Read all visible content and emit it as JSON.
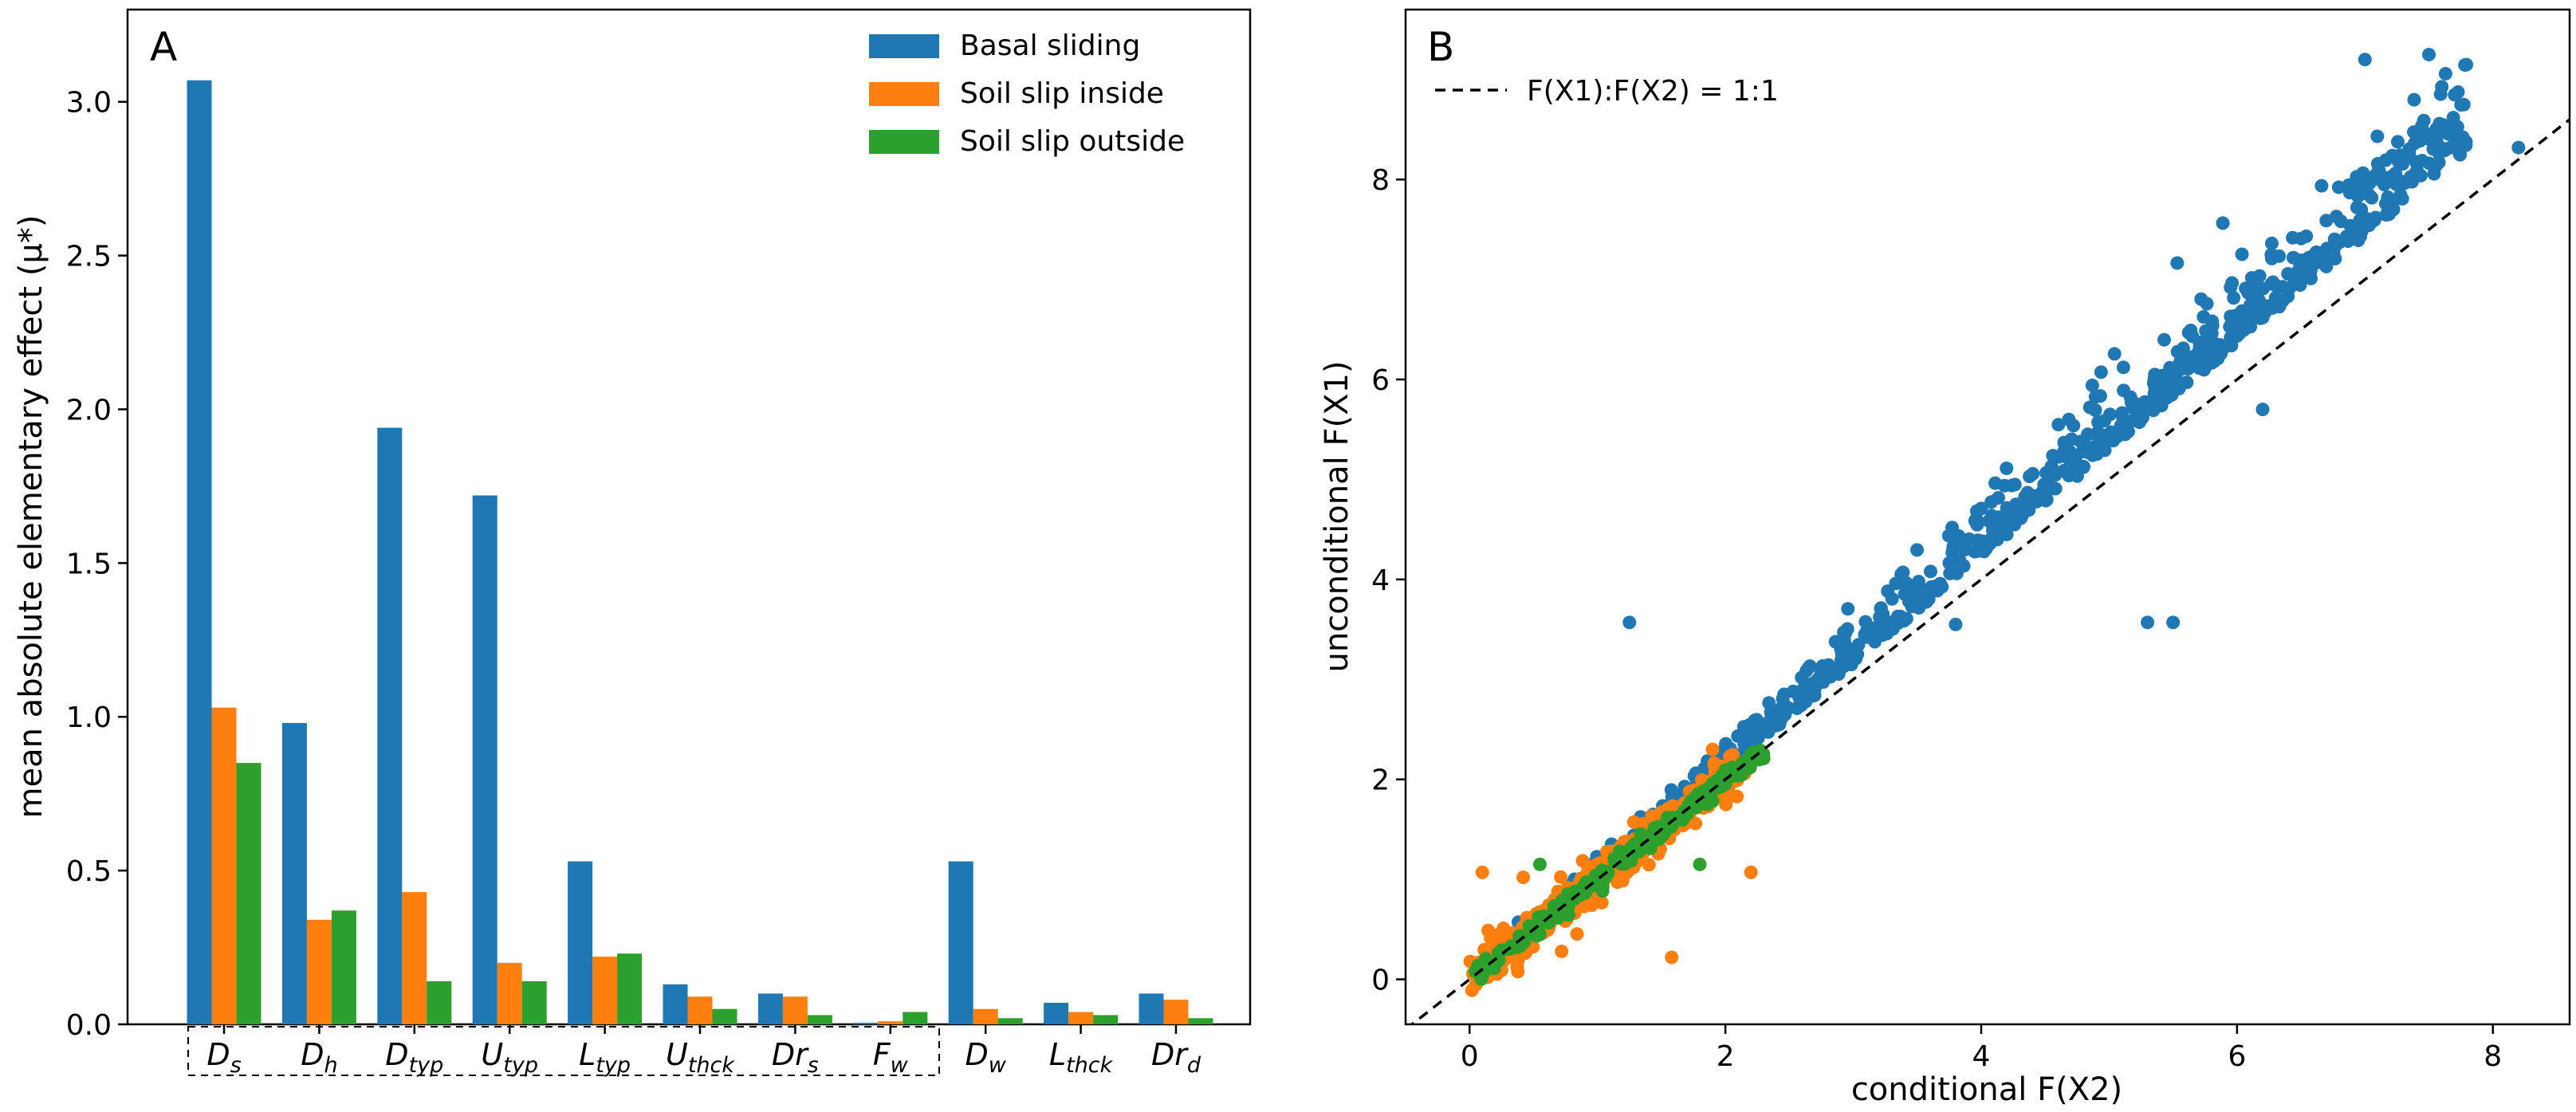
{
  "chart_data": [
    {
      "type": "bar",
      "panel": "A",
      "ylabel": "mean absolute elementary effect (μ*)",
      "ylim": [
        0,
        3.3
      ],
      "yticks": [
        "0.0",
        "0.5",
        "1.0",
        "1.5",
        "2.0",
        "2.5",
        "3.0"
      ],
      "grid": false,
      "legend_position": "top-right",
      "categories": [
        {
          "main": "D",
          "sub": "s"
        },
        {
          "main": "D",
          "sub": "h"
        },
        {
          "main": "D",
          "sub": "typ"
        },
        {
          "main": "U",
          "sub": "typ"
        },
        {
          "main": "L",
          "sub": "typ"
        },
        {
          "main": "U",
          "sub": "thck"
        },
        {
          "main": "Dr",
          "sub": "s"
        },
        {
          "main": "F",
          "sub": "w"
        },
        {
          "main": "D",
          "sub": "w"
        },
        {
          "main": "L",
          "sub": "thck"
        },
        {
          "main": "Dr",
          "sub": "d"
        }
      ],
      "boxed_group": "first 8 categories (Ds to Fw) enclosed in dashed box",
      "series": [
        {
          "name": "Basal sliding",
          "color": "#1f77b4",
          "values": [
            3.07,
            0.98,
            1.94,
            1.72,
            0.53,
            0.13,
            0.1,
            0.005,
            0.53,
            0.07,
            0.1
          ]
        },
        {
          "name": "Soil slip inside",
          "color": "#ff7f0e",
          "values": [
            1.03,
            0.34,
            0.43,
            0.2,
            0.22,
            0.09,
            0.09,
            0.01,
            0.05,
            0.04,
            0.08
          ]
        },
        {
          "name": "Soil slip outside",
          "color": "#2ca02c",
          "values": [
            0.85,
            0.37,
            0.14,
            0.14,
            0.23,
            0.05,
            0.03,
            0.04,
            0.02,
            0.03,
            0.02
          ]
        }
      ]
    },
    {
      "type": "scatter",
      "panel": "B",
      "xlabel": "conditional F(X2)",
      "ylabel": "unconditional F(X1)",
      "xlim": [
        -0.5,
        8.6
      ],
      "ylim": [
        -0.45,
        9.7
      ],
      "xticks": [
        "0",
        "2",
        "4",
        "6",
        "8"
      ],
      "yticks": [
        "0",
        "2",
        "4",
        "6",
        "8"
      ],
      "grid": false,
      "legend_position": "top-left",
      "reference_line": {
        "label": "F(X1):F(X2) = 1:1",
        "style": "dashed",
        "color": "#000000",
        "slope": 1,
        "intercept": 0
      },
      "series": [
        {
          "name": "Basal sliding",
          "color": "#1f77b4",
          "range_x": [
            0.1,
            8.2
          ],
          "cloud_count": 820,
          "outliers": [
            [
              7.0,
              9.2
            ],
            [
              7.5,
              9.25
            ],
            [
              7.5,
              8.45
            ],
            [
              8.2,
              8.32
            ],
            [
              1.25,
              3.57
            ],
            [
              5.3,
              3.57
            ],
            [
              5.5,
              3.57
            ],
            [
              3.8,
              3.55
            ],
            [
              6.2,
              5.7
            ],
            [
              4.2,
              4.45
            ]
          ]
        },
        {
          "name": "Soil slip inside",
          "color": "#ff7f0e",
          "range_x": [
            0.0,
            2.2
          ],
          "cloud_count": 380,
          "outliers": [
            [
              0.1,
              1.07
            ],
            [
              2.2,
              1.07
            ],
            [
              1.58,
              0.22
            ],
            [
              0.72,
              0.28
            ],
            [
              0.42,
              1.02
            ],
            [
              1.9,
              2.3
            ]
          ]
        },
        {
          "name": "Soil slip outside",
          "color": "#2ca02c",
          "range_x": [
            0.0,
            2.3
          ],
          "cloud_count": 220,
          "outliers": [
            [
              1.8,
              1.15
            ],
            [
              0.55,
              1.15
            ]
          ]
        }
      ]
    }
  ]
}
